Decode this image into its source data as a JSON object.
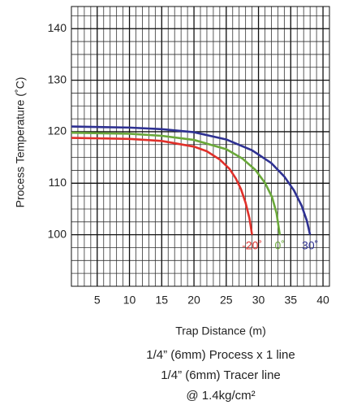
{
  "chart_data": {
    "type": "line",
    "xlabel": "Trap Distance (m)",
    "ylabel": "Process Temperature (˚C)",
    "notes": [
      "1/4” (6mm) Process x 1 line",
      "1/4” (6mm) Tracer line",
      "@ 1.4kg/cm²"
    ],
    "xlim": [
      1,
      41
    ],
    "ylim": [
      90,
      144.3
    ],
    "xticks": [
      5,
      10,
      15,
      20,
      25,
      30,
      35,
      40
    ],
    "yticks": [
      100,
      110,
      120,
      130,
      140
    ],
    "grid": true,
    "series": [
      {
        "name": "-20˚",
        "color": "#e0302a",
        "x": [
          1,
          10,
          15,
          20,
          22,
          24,
          25.5,
          26.5,
          27.3,
          28,
          28.6,
          29
        ],
        "values": [
          118.8,
          118.6,
          118.2,
          117.1,
          116.2,
          114.6,
          112.8,
          110.9,
          108.8,
          106.2,
          103.2,
          100
        ]
      },
      {
        "name": "0˚",
        "color": "#6aa83a",
        "x": [
          1,
          10,
          15,
          20,
          25,
          27.5,
          29.5,
          31,
          32.1,
          32.8,
          33.3
        ],
        "values": [
          119.8,
          119.6,
          119.2,
          118.4,
          116.6,
          114.8,
          112.6,
          110.1,
          107.3,
          104.2,
          100
        ]
      },
      {
        "name": "30˚",
        "color": "#2e3192",
        "x": [
          1,
          10,
          15,
          20,
          25,
          29,
          32,
          34,
          35.5,
          36.7,
          37.5,
          38
        ],
        "values": [
          121,
          120.8,
          120.5,
          119.9,
          118.5,
          116.4,
          113.9,
          111.3,
          108.6,
          105.6,
          102.7,
          100
        ]
      }
    ]
  }
}
